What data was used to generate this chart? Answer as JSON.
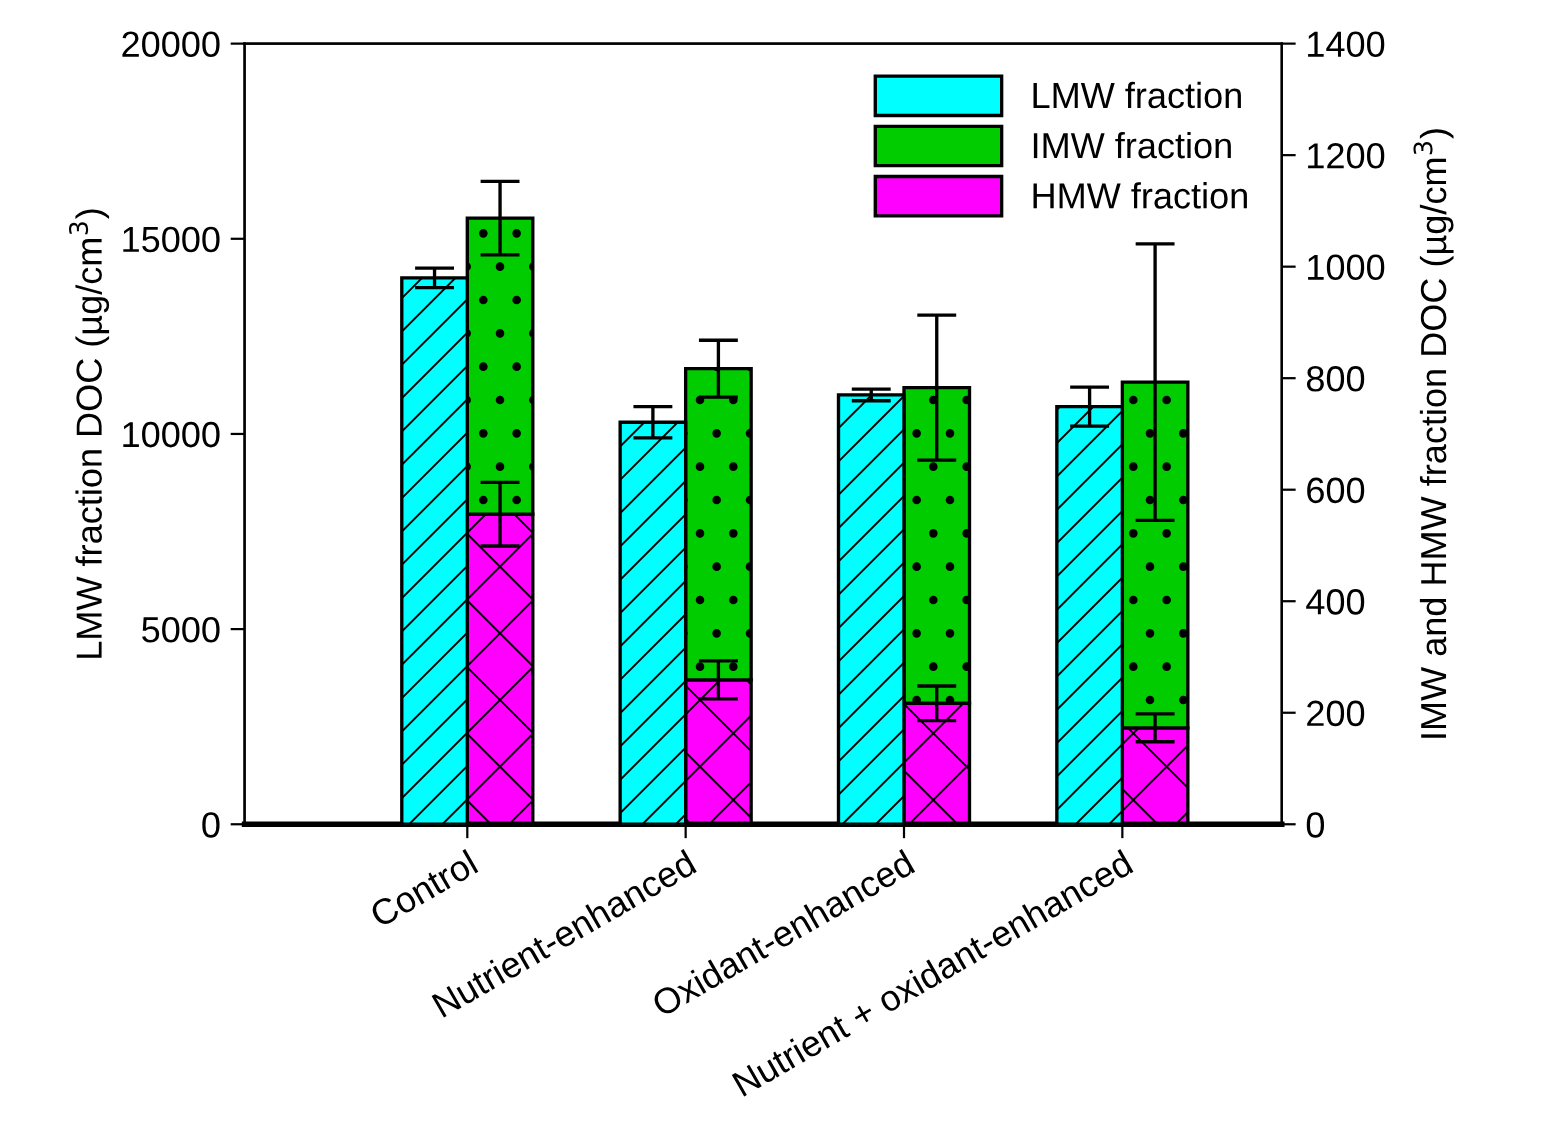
{
  "chart_data": {
    "type": "bar",
    "xlabel": null,
    "ylabel": "LMW fraction DOC (µg/cm$^{3}$)",
    "y2label": "IMW and HMW fraction DOC (µg/cm$^{3}$)",
    "categories": [
      "Control",
      "Nutrient-enhanced",
      "Oxidant-enhanced",
      "Nutrient + oxidant-enhanced"
    ],
    "series": [
      {
        "name": "LMW fraction",
        "color": "#00ffff",
        "axis": "y",
        "values": [
          14000,
          10300,
          11000,
          10700
        ],
        "errors": [
          250,
          400,
          150,
          500
        ]
      },
      {
        "name": "HMW fraction",
        "color": "#ff00ff",
        "axis": "y2",
        "values": [
          556,
          259,
          217,
          173
        ],
        "errors": [
          57,
          34,
          31,
          25
        ]
      },
      {
        "name": "IMW fraction",
        "color": "#00cc00",
        "axis": "y2",
        "values": [
          531,
          558,
          566,
          620
        ],
        "errors": [
          66,
          51,
          130,
          248
        ]
      }
    ],
    "stacked": true,
    "ylim": [
      0,
      20000
    ],
    "yticks": [
      0,
      5000,
      10000,
      15000,
      20000
    ],
    "y2lim": [
      0,
      1400
    ],
    "y2ticks": [
      0,
      200,
      400,
      600,
      800,
      1000,
      1200,
      1400
    ],
    "legend": "top right",
    "grid": false
  }
}
